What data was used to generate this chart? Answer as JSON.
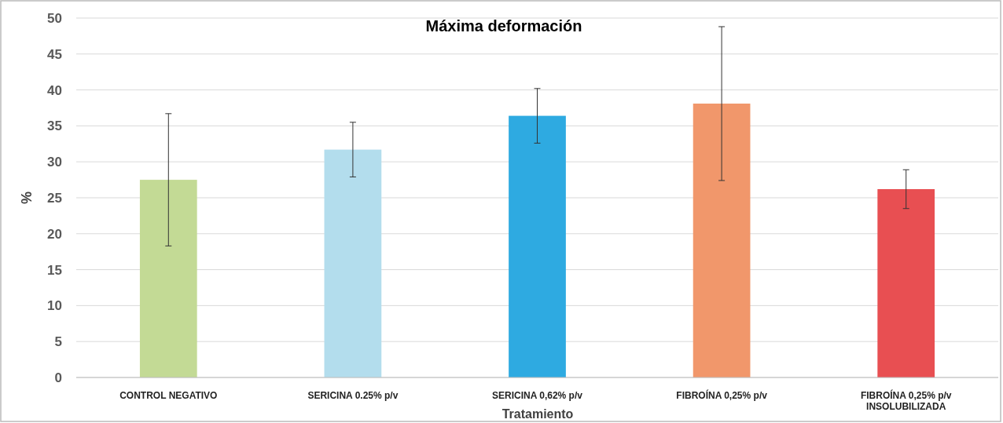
{
  "chart_data": {
    "type": "bar",
    "title": "Máxima deformación",
    "xlabel": "Tratamiento",
    "ylabel": "%",
    "categories": [
      "CONTROL NEGATIVO",
      "SERICINA 0.25% p/v",
      "SERICINA 0,62% p/v",
      "FIBROÍNA 0,25% p/v",
      "FIBROÍNA 0,25% p/v\nINSOLUBILIZADA"
    ],
    "values": [
      27.5,
      31.7,
      36.4,
      38.1,
      26.2
    ],
    "colors": [
      "#c3da95",
      "#b3dded",
      "#2eaae1",
      "#f1976b",
      "#e84f52"
    ],
    "errors": [
      9.2,
      3.8,
      3.8,
      10.7,
      2.7
    ],
    "ylim": [
      0,
      50
    ],
    "yticks": [
      0,
      5,
      10,
      15,
      20,
      25,
      30,
      35,
      40,
      45,
      50
    ],
    "grid": "y"
  }
}
